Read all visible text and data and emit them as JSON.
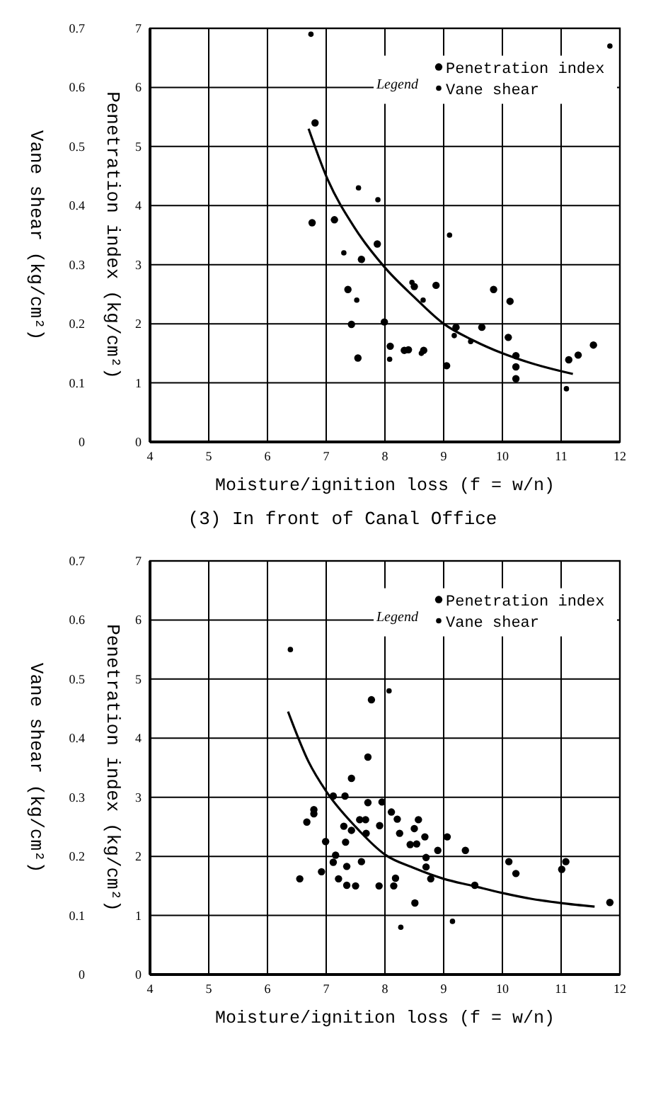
{
  "chart_data": [
    {
      "type": "scatter",
      "xlabel": "Moisture/ignition loss (f = w/n)",
      "ylabel": "Penetration index (kg/cm²)",
      "y2label": "Vane shear (kg/cm²)",
      "legend_title": "Legend",
      "legend": "top right",
      "grid": true,
      "marker": "circle",
      "xlim": [
        4,
        12
      ],
      "xticks": [
        4,
        5,
        6,
        7,
        8,
        9,
        10,
        11,
        12
      ],
      "ylim": [
        0,
        7
      ],
      "yticks": [
        0,
        1,
        2,
        3,
        4,
        5,
        6,
        7
      ],
      "y2lim": [
        0,
        0.7
      ],
      "y2ticks": [
        0,
        0.1,
        0.2,
        0.3,
        0.4,
        0.5,
        0.6,
        0.7
      ],
      "annotations": [
        "(3) In front of Canal Office"
      ],
      "series": [
        {
          "name": "Penetration index",
          "color": "#000000",
          "x": [
            6.81,
            6.76,
            7.14,
            7.6,
            7.87,
            7.37,
            7.43,
            7.54,
            7.99,
            8.09,
            8.33,
            8.4,
            8.66,
            8.5,
            8.87,
            9.05,
            9.21,
            9.65,
            9.85,
            10.13,
            10.1,
            10.23,
            10.23,
            10.23,
            11.13,
            11.29,
            11.55
          ],
          "values": [
            5.4,
            3.71,
            3.76,
            3.09,
            3.35,
            2.58,
            1.99,
            1.42,
            2.03,
            1.62,
            1.55,
            1.56,
            1.55,
            2.63,
            2.65,
            1.29,
            1.94,
            1.94,
            2.58,
            2.38,
            1.77,
            1.46,
            1.27,
            1.07,
            1.39,
            1.47,
            1.64
          ]
        },
        {
          "name": "Vane shear",
          "color": "#000000",
          "axis": "y2",
          "x": [
            6.74,
            7.55,
            7.88,
            7.3,
            7.52,
            8.46,
            8.65,
            9.1,
            9.18,
            9.46,
            8.08,
            8.62,
            11.09,
            11.83
          ],
          "values": [
            0.69,
            0.43,
            0.41,
            0.32,
            0.24,
            0.27,
            0.24,
            0.35,
            0.18,
            0.17,
            0.14,
            0.15,
            0.09,
            0.67
          ]
        },
        {
          "type": "line",
          "marker": "none",
          "color": "#000000",
          "x": [
            6.7,
            7,
            7.5,
            8,
            8.5,
            9,
            9.5,
            10,
            10.5,
            11.2
          ],
          "values": [
            5.3,
            4.5,
            3.6,
            2.95,
            2.45,
            2.0,
            1.72,
            1.5,
            1.33,
            1.15
          ]
        }
      ]
    },
    {
      "type": "scatter",
      "xlabel": "Moisture/ignition loss (f = w/n)",
      "ylabel": "Penetration index (kg/cm²)",
      "y2label": "Vane shear (kg/cm²)",
      "legend_title": "Legend",
      "legend": "top right",
      "grid": true,
      "marker": "circle",
      "xlim": [
        4,
        12
      ],
      "xticks": [
        4,
        5,
        6,
        7,
        8,
        9,
        10,
        11,
        12
      ],
      "ylim": [
        0,
        7
      ],
      "yticks": [
        0,
        1,
        2,
        3,
        4,
        5,
        6,
        7
      ],
      "y2lim": [
        0,
        0.7
      ],
      "y2ticks": [
        0,
        0.1,
        0.2,
        0.3,
        0.4,
        0.5,
        0.6,
        0.7
      ],
      "series": [
        {
          "name": "Penetration index",
          "color": "#000000",
          "x": [
            6.55,
            6.67,
            6.79,
            6.79,
            6.92,
            6.99,
            7.12,
            7.16,
            7.12,
            7.21,
            7.3,
            7.32,
            7.33,
            7.35,
            7.35,
            7.43,
            7.43,
            7.5,
            7.57,
            7.6,
            7.67,
            7.68,
            7.71,
            7.71,
            7.77,
            7.91,
            7.9,
            7.95,
            8.11,
            8.15,
            8.18,
            8.21,
            8.25,
            8.43,
            8.5,
            8.54,
            8.51,
            8.57,
            8.68,
            8.7,
            8.7,
            8.78,
            8.9,
            9.06,
            9.37,
            9.53,
            10.11,
            10.23,
            11.01,
            11.08,
            11.83
          ],
          "values": [
            1.62,
            2.58,
            2.79,
            2.72,
            1.74,
            2.25,
            3.02,
            2.02,
            1.9,
            1.62,
            2.51,
            3.02,
            2.24,
            1.83,
            1.51,
            3.32,
            2.44,
            1.5,
            2.62,
            1.91,
            2.62,
            2.39,
            2.91,
            3.68,
            4.65,
            2.52,
            1.5,
            2.92,
            2.75,
            1.5,
            1.63,
            2.63,
            2.39,
            2.2,
            2.47,
            2.21,
            1.21,
            2.62,
            2.33,
            1.98,
            1.82,
            1.62,
            2.1,
            2.33,
            2.1,
            1.51,
            1.91,
            1.71,
            1.78,
            1.91,
            1.22
          ]
        },
        {
          "name": "Vane shear",
          "color": "#000000",
          "axis": "y2",
          "x": [
            6.39,
            8.07,
            8.27,
            9.15
          ],
          "values": [
            0.55,
            0.48,
            0.08,
            0.09
          ]
        },
        {
          "type": "line",
          "marker": "none",
          "color": "#000000",
          "x": [
            6.35,
            6.7,
            7,
            7.5,
            8,
            8.5,
            9,
            9.5,
            10,
            10.5,
            11,
            11.57
          ],
          "values": [
            4.45,
            3.6,
            3.1,
            2.5,
            2.03,
            1.8,
            1.62,
            1.5,
            1.38,
            1.28,
            1.21,
            1.15
          ]
        }
      ]
    }
  ]
}
